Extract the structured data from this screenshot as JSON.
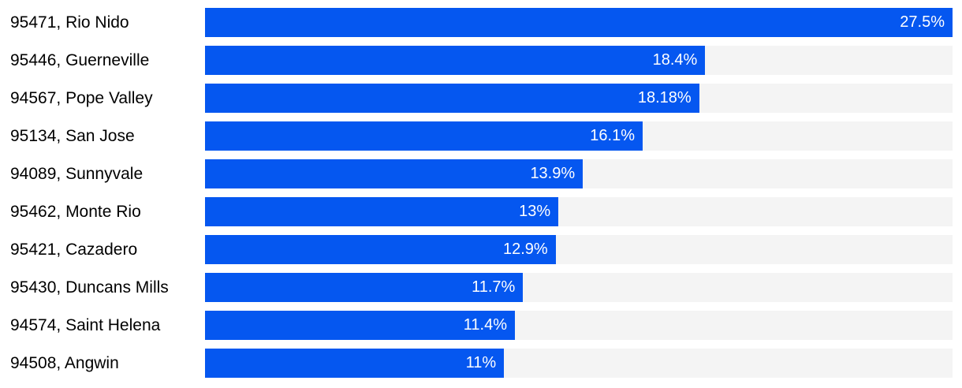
{
  "chart_data": {
    "type": "bar",
    "orientation": "horizontal",
    "title": "",
    "xlabel": "",
    "ylabel": "",
    "categories": [
      "95471, Rio Nido",
      "95446, Guerneville",
      "94567, Pope Valley",
      "95134, San Jose",
      "94089, Sunnyvale",
      "95462, Monte Rio",
      "95421, Cazadero",
      "95430, Duncans Mills",
      "94574, Saint Helena",
      "94508, Angwin"
    ],
    "values": [
      27.5,
      18.4,
      18.18,
      16.1,
      13.9,
      13,
      12.9,
      11.7,
      11.4,
      11
    ],
    "value_labels": [
      "27.5%",
      "18.4%",
      "18.18%",
      "16.1%",
      "13.9%",
      "13%",
      "12.9%",
      "11.7%",
      "11.4%",
      "11%"
    ],
    "xlim": [
      0,
      27.5
    ],
    "grid": false,
    "legend": "none",
    "axes_visible": false,
    "colors": {
      "bar": "#0557f0",
      "track": "#f4f4f4",
      "value_text": "#ffffff",
      "category_text": "#000000",
      "background": "#ffffff"
    }
  }
}
